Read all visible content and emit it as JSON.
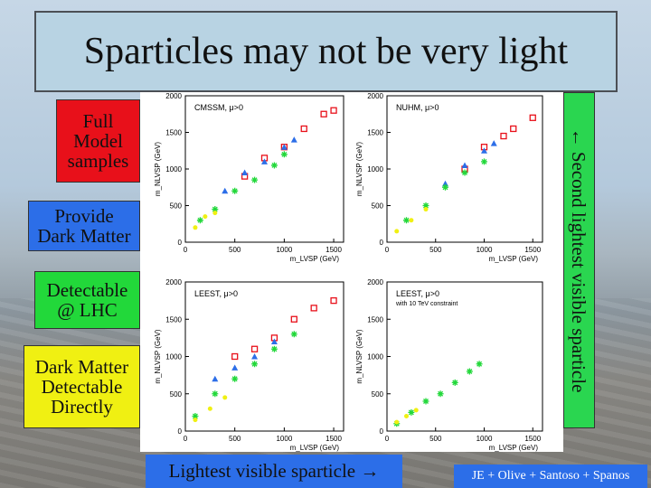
{
  "slide": {
    "title": "Sparticles may not be very light",
    "labels": {
      "full_model": "Full\nModel\nsamples",
      "dark_matter": "Provide\nDark Matter",
      "lhc": "Detectable\n@ LHC",
      "direct": "Dark Matter\nDetectable\nDirectly"
    },
    "side_label": "← Second lightest visible sparticle",
    "bottom_label": "Lightest visible sparticle →",
    "credit": "JE + Olive + Santoso + Spanos",
    "colors": {
      "full_model": "#e8101a",
      "dark_matter": "#2c6ee8",
      "lhc": "#22d83a",
      "direct": "#f0f012"
    }
  },
  "chart_data": [
    {
      "type": "scatter",
      "panel": "top-left",
      "title": "CMSSM, μ>0",
      "xlabel": "m_LVSP (GeV)",
      "ylabel": "m_NLVSP (GeV)",
      "xlim": [
        0,
        1600
      ],
      "ylim": [
        0,
        2000
      ],
      "xticks": [
        0,
        500,
        1000,
        1500
      ],
      "yticks": [
        0,
        500,
        1000,
        1500,
        2000
      ],
      "series": [
        {
          "marker": "square",
          "color": "#e8101a",
          "points": [
            [
              600,
              900
            ],
            [
              800,
              1150
            ],
            [
              1000,
              1300
            ],
            [
              1200,
              1550
            ],
            [
              1400,
              1750
            ],
            [
              1500,
              1800
            ]
          ]
        },
        {
          "marker": "triangle",
          "color": "#2c6ee8",
          "points": [
            [
              400,
              700
            ],
            [
              600,
              950
            ],
            [
              800,
              1100
            ],
            [
              1000,
              1300
            ],
            [
              1100,
              1400
            ]
          ]
        },
        {
          "marker": "star",
          "color": "#22d83a",
          "points": [
            [
              150,
              300
            ],
            [
              300,
              450
            ],
            [
              500,
              700
            ],
            [
              700,
              850
            ],
            [
              900,
              1050
            ],
            [
              1000,
              1200
            ]
          ]
        },
        {
          "marker": "circle",
          "color": "#f0f012",
          "points": [
            [
              100,
              200
            ],
            [
              200,
              350
            ],
            [
              300,
              400
            ]
          ]
        }
      ]
    },
    {
      "type": "scatter",
      "panel": "top-right",
      "title": "NUHM, μ>0",
      "xlabel": "m_LVSP (GeV)",
      "ylabel": "m_NLVSP (GeV)",
      "xlim": [
        0,
        1600
      ],
      "ylim": [
        0,
        2000
      ],
      "xticks": [
        0,
        500,
        1000,
        1500
      ],
      "yticks": [
        0,
        500,
        1000,
        1500,
        2000
      ],
      "series": [
        {
          "marker": "square",
          "color": "#e8101a",
          "points": [
            [
              800,
              1000
            ],
            [
              1000,
              1300
            ],
            [
              1200,
              1450
            ],
            [
              1300,
              1550
            ],
            [
              1500,
              1700
            ]
          ]
        },
        {
          "marker": "triangle",
          "color": "#2c6ee8",
          "points": [
            [
              600,
              800
            ],
            [
              800,
              1050
            ],
            [
              1000,
              1250
            ],
            [
              1100,
              1350
            ]
          ]
        },
        {
          "marker": "star",
          "color": "#22d83a",
          "points": [
            [
              200,
              300
            ],
            [
              400,
              500
            ],
            [
              600,
              750
            ],
            [
              800,
              950
            ],
            [
              1000,
              1100
            ]
          ]
        },
        {
          "marker": "circle",
          "color": "#f0f012",
          "points": [
            [
              100,
              150
            ],
            [
              250,
              300
            ],
            [
              400,
              450
            ]
          ]
        }
      ]
    },
    {
      "type": "scatter",
      "panel": "bottom-left",
      "title": "LEEST, μ>0",
      "xlabel": "m_LVSP (GeV)",
      "ylabel": "m_NLVSP (GeV)",
      "xlim": [
        0,
        1600
      ],
      "ylim": [
        0,
        2000
      ],
      "xticks": [
        0,
        500,
        1000,
        1500
      ],
      "yticks": [
        0,
        500,
        1000,
        1500,
        2000
      ],
      "series": [
        {
          "marker": "square",
          "color": "#e8101a",
          "points": [
            [
              500,
              1000
            ],
            [
              700,
              1100
            ],
            [
              900,
              1250
            ],
            [
              1100,
              1500
            ],
            [
              1300,
              1650
            ],
            [
              1500,
              1750
            ]
          ]
        },
        {
          "marker": "triangle",
          "color": "#2c6ee8",
          "points": [
            [
              300,
              700
            ],
            [
              500,
              850
            ],
            [
              700,
              1000
            ],
            [
              900,
              1200
            ]
          ]
        },
        {
          "marker": "star",
          "color": "#22d83a",
          "points": [
            [
              100,
              200
            ],
            [
              300,
              500
            ],
            [
              500,
              700
            ],
            [
              700,
              900
            ],
            [
              900,
              1100
            ],
            [
              1100,
              1300
            ]
          ]
        },
        {
          "marker": "circle",
          "color": "#f0f012",
          "points": [
            [
              100,
              150
            ],
            [
              250,
              300
            ],
            [
              400,
              450
            ]
          ]
        }
      ]
    },
    {
      "type": "scatter",
      "panel": "bottom-right",
      "title": "LEEST, μ>0",
      "subtitle": "with 10 TeV constraint",
      "xlabel": "m_LVSP (GeV)",
      "ylabel": "m_NLVSP (GeV)",
      "xlim": [
        0,
        1600
      ],
      "ylim": [
        0,
        2000
      ],
      "xticks": [
        0,
        500,
        1000,
        1500
      ],
      "yticks": [
        0,
        500,
        1000,
        1500,
        2000
      ],
      "series": [
        {
          "marker": "star",
          "color": "#22d83a",
          "points": [
            [
              100,
              100
            ],
            [
              250,
              250
            ],
            [
              400,
              400
            ],
            [
              550,
              500
            ],
            [
              700,
              650
            ],
            [
              850,
              800
            ],
            [
              950,
              900
            ]
          ]
        },
        {
          "marker": "circle",
          "color": "#f0f012",
          "points": [
            [
              100,
              120
            ],
            [
              200,
              200
            ],
            [
              300,
              280
            ]
          ]
        }
      ]
    }
  ]
}
